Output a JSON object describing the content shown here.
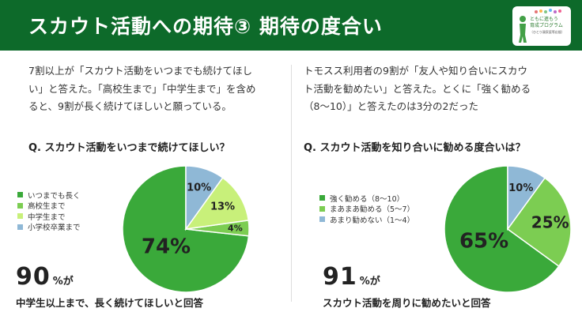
{
  "header": {
    "title": "スカウト活動への期待③ 期待の度合い",
    "bg_color": "#0d6a2a",
    "logo": {
      "line1": "ともに進もう",
      "line2": "育成プログラム",
      "line3": "（ひとり親家庭等応援）",
      "icon": "child-silhouette-logo-icon"
    }
  },
  "left": {
    "paragraph": [
      "7割以上が「スカウト活動をいつまでも続けてほし",
      "い」と答えた。「高校生まで」「中学生まで」を含め",
      "ると、9割が長く続けてほしいと願っている。"
    ],
    "question": "Q. スカウト活動をいつまで続けてほしい？",
    "big_number": "90",
    "big_unit": "%が",
    "caption": "中学生以上まで、長く続けてほしいと回答"
  },
  "right": {
    "paragraph": [
      "トモスス利用者の9割が「友人や知り合いにスカウ",
      "ト活動を勧めたい」と答えた。とくに「強く勧める",
      "（8〜10）」と答えたのは3分の2だった"
    ],
    "question": "Q. スカウト活動を知り合いに勧める度合いは？",
    "big_number": "91",
    "big_unit": "%が",
    "caption": "スカウト活動を周りに勧めたいと回答"
  },
  "chart_data": [
    {
      "type": "pie",
      "title": "Q. スカウト活動をいつまで続けてほしい？",
      "categories": [
        "いつまでも長く",
        "高校生まで",
        "中学生まで",
        "小学校卒業まで"
      ],
      "values": [
        74,
        4,
        13,
        10
      ],
      "labels": [
        "74%",
        "4%",
        "13%",
        "10%"
      ],
      "colors": [
        "#3aa93a",
        "#7ccd52",
        "#c8f07a",
        "#8fb8d6"
      ],
      "legend": "left"
    },
    {
      "type": "pie",
      "title": "Q. スカウト活動を知り合いに勧める度合いは？",
      "categories": [
        "強く勧める（8〜10）",
        "まあまあ勧める（5〜7）",
        "あまり勧めない（1〜4）"
      ],
      "values": [
        65,
        25,
        10
      ],
      "labels": [
        "65%",
        "25%",
        "10%"
      ],
      "colors": [
        "#3aa93a",
        "#7ccd52",
        "#8fb8d6"
      ],
      "legend": "left"
    }
  ]
}
